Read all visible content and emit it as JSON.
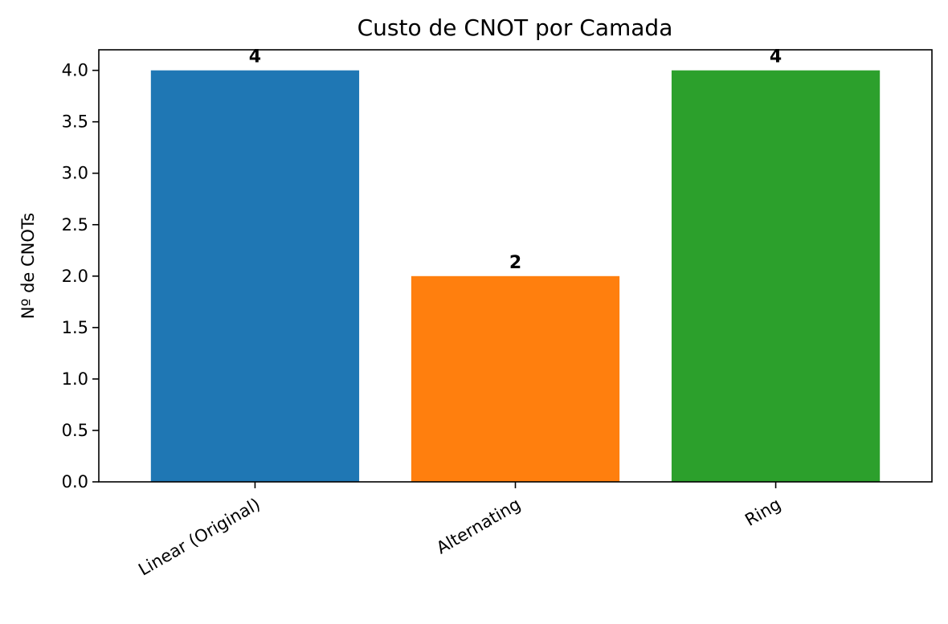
{
  "chart_data": {
    "type": "bar",
    "title": "Custo de CNOT por Camada",
    "xlabel": "",
    "ylabel": "Nº de CNOTs",
    "categories": [
      "Linear (Original)",
      "Alternating",
      "Ring"
    ],
    "values": [
      4,
      2,
      4
    ],
    "data_labels": [
      "4",
      "2",
      "4"
    ],
    "colors": [
      "#1f77b4",
      "#ff7f0e",
      "#2ca02c"
    ],
    "ylim": [
      0,
      4.2
    ],
    "yticks": [
      0.0,
      0.5,
      1.0,
      1.5,
      2.0,
      2.5,
      3.0,
      3.5,
      4.0
    ],
    "ytick_labels": [
      "0.0",
      "0.5",
      "1.0",
      "1.5",
      "2.0",
      "2.5",
      "3.0",
      "3.5",
      "4.0"
    ],
    "grid": false,
    "legend": "none"
  }
}
